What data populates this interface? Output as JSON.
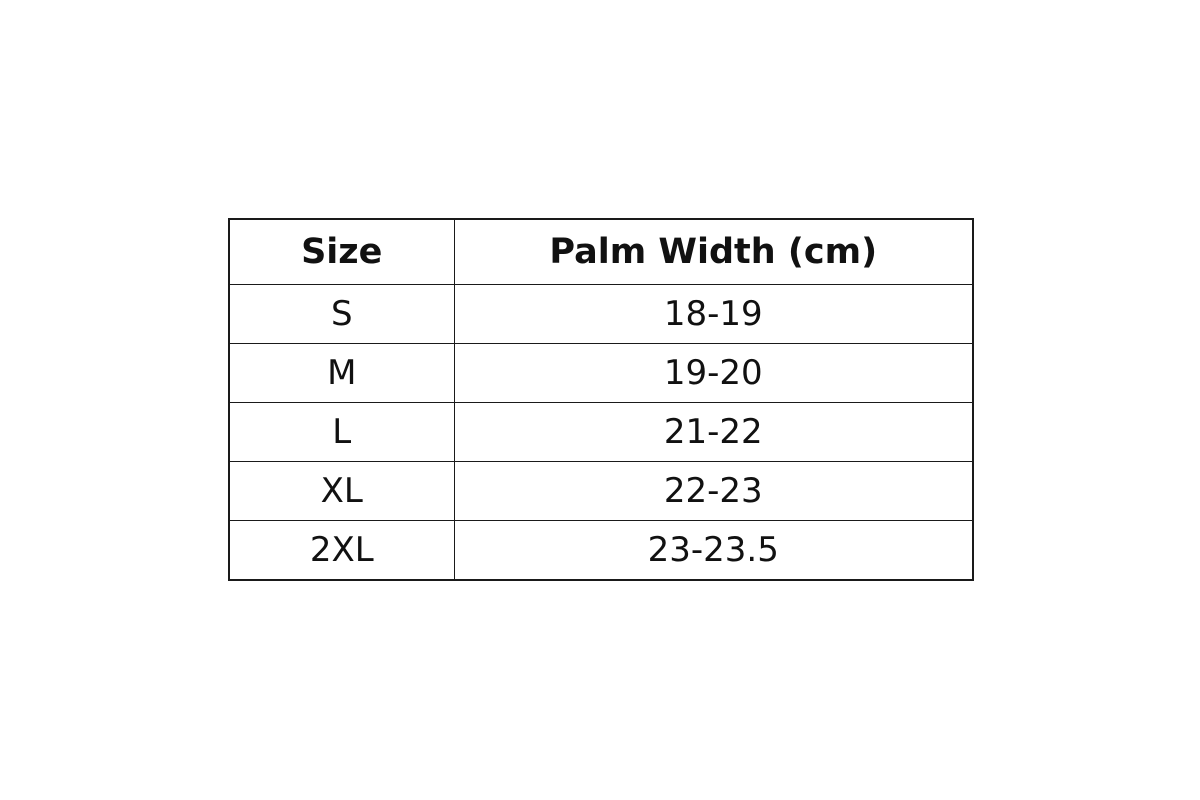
{
  "table": {
    "headers": [
      "Size",
      "Palm Width (cm)"
    ],
    "rows": [
      [
        "S",
        "18-19"
      ],
      [
        "M",
        "19-20"
      ],
      [
        "L",
        "21-22"
      ],
      [
        "XL",
        "22-23"
      ],
      [
        "2XL",
        "23-23.5"
      ]
    ]
  }
}
